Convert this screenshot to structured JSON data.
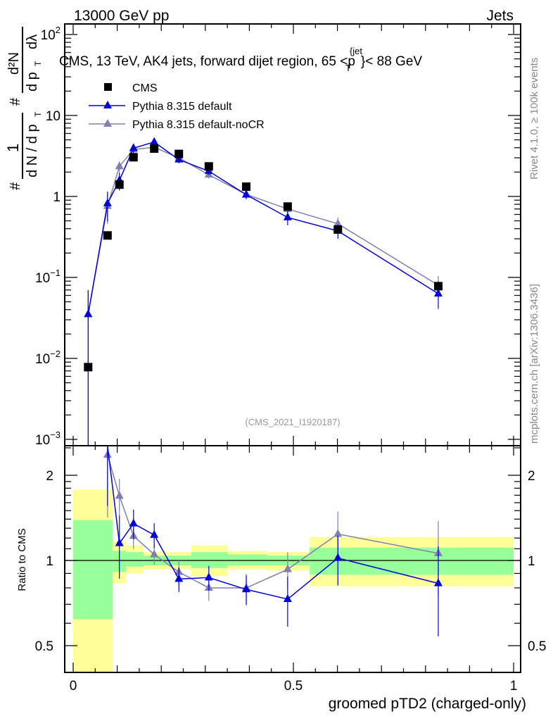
{
  "header": {
    "left": "13000 GeV pp",
    "right": "Jets"
  },
  "side_labels": {
    "rivet": "Rivet 4.1.0, ≥ 100k events",
    "mcplots": "mcplots.cern.ch [arXiv:1306.3436]"
  },
  "watermark": "(CMS_2021_I1920187)",
  "title_parts": {
    "main": "CMS, 13 TeV, AK4 jets, forward dijet region, 65 <p",
    "sub": "T",
    "sup": "{jet",
    "tail": "}< 88 GeV"
  },
  "ylabel_parts": {
    "hash": "#",
    "num1": "1",
    "den1": "d N / d p",
    "t": "T",
    "num2": "d²N",
    "den2": "d p",
    "den2b": "dλ"
  },
  "colors": {
    "cms": "#000000",
    "default": "#0000dd",
    "nocr": "#7f7fb2",
    "band_total": "#ffff99",
    "band_stat": "#99ff99"
  },
  "chart_data": [
    {
      "type": "scatter",
      "panel": "main",
      "ylog": true,
      "ylim": [
        0.0008,
        150
      ],
      "xlim": [
        -0.02,
        1.015
      ],
      "ytick_labels": [
        {
          "v": 100,
          "b": "10",
          "e": "2"
        },
        {
          "v": 10,
          "b": "10",
          "e": ""
        },
        {
          "v": 1,
          "b": "1",
          "e": ""
        },
        {
          "v": 0.1,
          "b": "10",
          "e": "−1"
        },
        {
          "v": 0.01,
          "b": "10",
          "e": "−2"
        },
        {
          "v": 0.001,
          "b": "10",
          "e": "−3"
        }
      ],
      "x": [
        0.034,
        0.078,
        0.105,
        0.137,
        0.184,
        0.24,
        0.308,
        0.393,
        0.487,
        0.601,
        0.829
      ],
      "legend": "top-left",
      "series": [
        {
          "name": "CMS",
          "marker": "square",
          "values": [
            0.0078,
            0.33,
            1.4,
            3.05,
            3.9,
            3.35,
            2.35,
            1.32,
            0.75,
            0.39,
            0.078
          ]
        },
        {
          "name": "Pythia 8.315 default",
          "marker": "triangle",
          "values": [
            0.035,
            0.82,
            1.58,
            3.95,
            4.7,
            2.85,
            2.05,
            1.05,
            0.55,
            0.375,
            0.063
          ],
          "rel_err": [
            0.99,
            0.4,
            0.25,
            0.12,
            0.1,
            0.1,
            0.1,
            0.12,
            0.2,
            0.2,
            0.35
          ]
        },
        {
          "name": "Pythia 8.315 default-noCR",
          "marker": "triangle",
          "values": [
            0.035,
            0.76,
            2.35,
            3.8,
            4.05,
            3.0,
            1.85,
            1.06,
            0.7,
            0.46,
            0.08
          ],
          "rel_err": [
            0.99,
            0.4,
            0.15,
            0.1,
            0.08,
            0.1,
            0.1,
            0.12,
            0.15,
            0.2,
            0.3
          ]
        }
      ]
    },
    {
      "type": "line",
      "panel": "ratio",
      "ylabel": "Ratio to CMS",
      "xlabel": "groomed pTD2 (charged-only)",
      "ylog": true,
      "ylim": [
        0.4,
        2.54
      ],
      "ytick_labels": [
        {
          "v": 2,
          "t": "2"
        },
        {
          "v": 1,
          "t": "1"
        },
        {
          "v": 0.5,
          "t": "0.5"
        }
      ],
      "xtick_labels": [
        {
          "v": 0,
          "t": "0"
        },
        {
          "v": 0.5,
          "t": "0.5"
        },
        {
          "v": 1,
          "t": "1"
        }
      ],
      "x": [
        0.078,
        0.105,
        0.137,
        0.184,
        0.24,
        0.308,
        0.393,
        0.487,
        0.601,
        0.829
      ],
      "series": [
        {
          "name": "Pythia 8.315 default",
          "values": [
            2.6,
            1.15,
            1.35,
            1.23,
            0.86,
            0.87,
            0.79,
            0.73,
            1.02,
            0.83
          ],
          "rel_err": [
            0.4,
            0.25,
            0.12,
            0.1,
            0.1,
            0.1,
            0.12,
            0.2,
            0.2,
            0.35
          ]
        },
        {
          "name": "Pythia 8.315 default-noCR",
          "values": [
            2.36,
            1.69,
            1.22,
            1.05,
            0.91,
            0.8,
            0.8,
            0.93,
            1.24,
            1.06
          ],
          "rel_err": [
            0.4,
            0.15,
            0.1,
            0.08,
            0.1,
            0.1,
            0.12,
            0.15,
            0.2,
            0.3
          ]
        }
      ],
      "bands": [
        {
          "x0": 0.0,
          "x1": 0.09,
          "tot": [
            0.3,
            1.78
          ],
          "stat": [
            0.62,
            1.39
          ]
        },
        {
          "x0": 0.09,
          "x1": 0.12,
          "tot": [
            0.83,
            1.17
          ],
          "stat": [
            0.91,
            1.08
          ]
        },
        {
          "x0": 0.12,
          "x1": 0.16,
          "tot": [
            0.9,
            1.13
          ],
          "stat": [
            0.95,
            1.07
          ]
        },
        {
          "x0": 0.16,
          "x1": 0.268,
          "tot": [
            0.93,
            1.07
          ],
          "stat": [
            0.96,
            1.04
          ]
        },
        {
          "x0": 0.268,
          "x1": 0.35,
          "tot": [
            0.88,
            1.13
          ],
          "stat": [
            0.94,
            1.07
          ]
        },
        {
          "x0": 0.35,
          "x1": 0.44,
          "tot": [
            0.93,
            1.08
          ],
          "stat": [
            0.96,
            1.05
          ]
        },
        {
          "x0": 0.44,
          "x1": 0.537,
          "tot": [
            0.92,
            1.07
          ],
          "stat": [
            0.96,
            1.04
          ]
        },
        {
          "x0": 0.537,
          "x1": 1.0,
          "tot": [
            0.81,
            1.21
          ],
          "stat": [
            0.89,
            1.11
          ]
        }
      ]
    }
  ]
}
